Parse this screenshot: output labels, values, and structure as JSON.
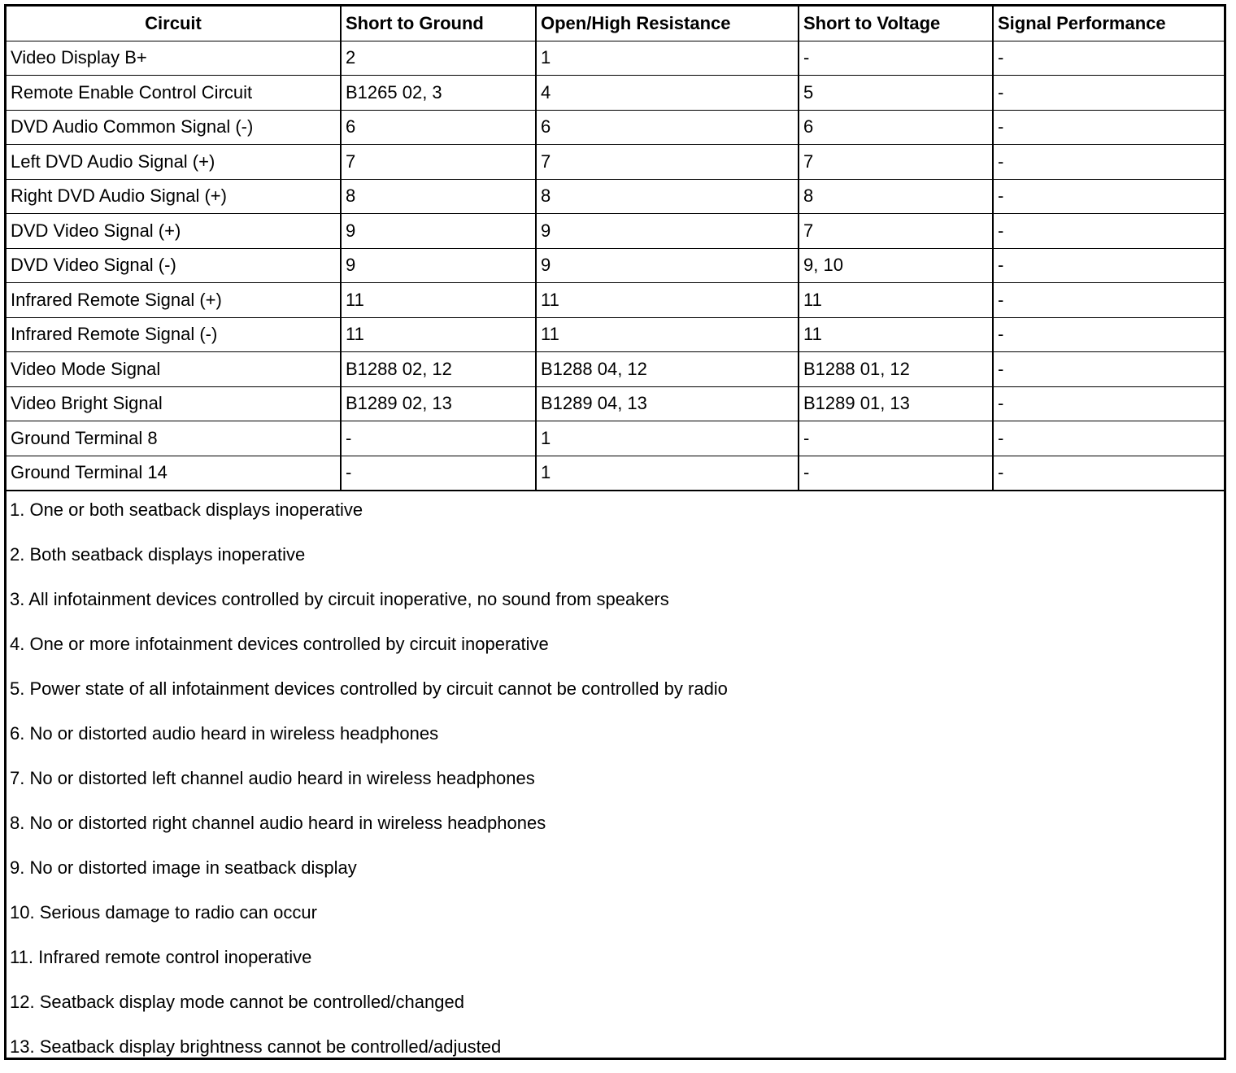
{
  "table": {
    "headers": [
      "Circuit",
      "Short to Ground",
      "Open/High Resistance",
      "Short to Voltage",
      "Signal Performance"
    ],
    "rows": [
      [
        "Video Display B+",
        "2",
        "1",
        "-",
        "-"
      ],
      [
        "Remote Enable Control Circuit",
        "B1265 02, 3",
        "4",
        "5",
        "-"
      ],
      [
        "DVD Audio Common Signal (-)",
        "6",
        "6",
        "6",
        "-"
      ],
      [
        "Left DVD Audio Signal (+)",
        "7",
        "7",
        "7",
        "-"
      ],
      [
        "Right DVD Audio Signal (+)",
        "8",
        "8",
        "8",
        "-"
      ],
      [
        "DVD Video Signal (+)",
        "9",
        "9",
        "7",
        "-"
      ],
      [
        "DVD Video Signal (-)",
        "9",
        "9",
        "9, 10",
        "-"
      ],
      [
        "Infrared Remote Signal (+)",
        "11",
        "11",
        "11",
        "-"
      ],
      [
        "Infrared Remote Signal (-)",
        "11",
        "11",
        "11",
        "-"
      ],
      [
        "Video Mode Signal",
        "B1288 02, 12",
        "B1288 04, 12",
        "B1288 01, 12",
        "-"
      ],
      [
        "Video Bright Signal",
        "B1289 02, 13",
        "B1289 04, 13",
        "B1289 01, 13",
        "-"
      ],
      [
        "Ground Terminal 8",
        "-",
        "1",
        "-",
        "-"
      ],
      [
        "Ground Terminal 14",
        "-",
        "1",
        "-",
        "-"
      ]
    ]
  },
  "notes": [
    "1. One or both seatback displays inoperative",
    "2. Both seatback displays inoperative",
    "3. All infotainment devices controlled by circuit inoperative, no sound from speakers",
    "4. One or more infotainment devices controlled by circuit inoperative",
    "5. Power state of all infotainment devices controlled by circuit cannot be controlled by radio",
    "6. No or distorted audio heard in wireless headphones",
    "7. No or distorted left channel audio heard in wireless headphones",
    "8. No or distorted right channel audio heard in wireless headphones",
    "9. No or distorted image in seatback display",
    "10. Serious damage to radio can occur",
    "11. Infrared remote control inoperative",
    "12. Seatback display mode cannot be controlled/changed",
    "13. Seatback display brightness cannot be controlled/adjusted"
  ]
}
